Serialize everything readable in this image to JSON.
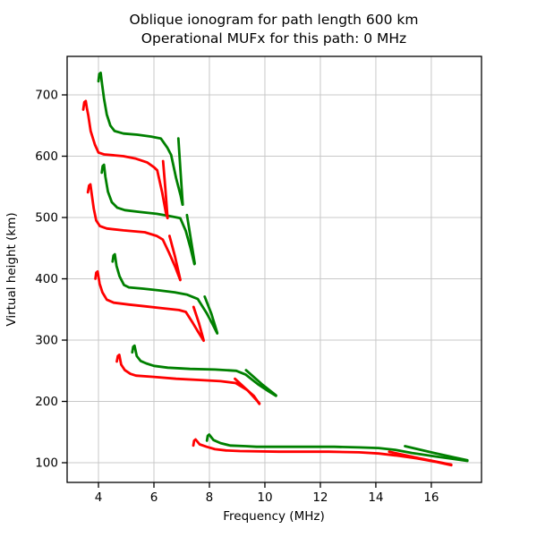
{
  "title": {
    "line1": "Oblique ionogram for path length 600 km",
    "line2": "Operational MUFx for this path: 0 MHz"
  },
  "chart_data": {
    "type": "line",
    "title": "Oblique ionogram for path length 600 km",
    "subtitle": "Operational MUFx for this path: 0 MHz",
    "xlabel": "Frequency (MHz)",
    "ylabel": "Virtual height (km)",
    "xlim": [
      2.87,
      17.81
    ],
    "ylim": [
      67.9,
      762.8
    ],
    "x_ticks": [
      4,
      6,
      8,
      10,
      12,
      14,
      16
    ],
    "y_ticks": [
      100,
      200,
      300,
      400,
      500,
      600,
      700
    ],
    "grid": true,
    "legend": "none",
    "colors": {
      "red": "#ff0000",
      "green": "#008000",
      "grid": "#c8c8c8",
      "spine": "#000000"
    },
    "series": [
      {
        "name": "green-trace-1-low-ray",
        "color": "#008000",
        "points": [
          [
            4.0,
            722
          ],
          [
            4.03,
            734
          ],
          [
            4.08,
            736
          ],
          [
            4.13,
            718
          ],
          [
            4.2,
            694
          ],
          [
            4.3,
            668
          ],
          [
            4.43,
            650
          ],
          [
            4.58,
            641
          ],
          [
            4.9,
            637
          ],
          [
            5.4,
            635
          ],
          [
            5.9,
            632
          ],
          [
            6.25,
            629
          ],
          [
            6.48,
            614
          ],
          [
            6.62,
            602
          ],
          [
            6.8,
            564
          ],
          [
            6.96,
            536
          ],
          [
            7.03,
            521
          ]
        ]
      },
      {
        "name": "green-trace-1-high-ray",
        "color": "#008000",
        "points": [
          [
            6.88,
            629
          ],
          [
            6.96,
            573
          ],
          [
            7.04,
            521
          ]
        ]
      },
      {
        "name": "green-trace-2-low-ray",
        "color": "#008000",
        "points": [
          [
            4.12,
            573
          ],
          [
            4.15,
            584
          ],
          [
            4.2,
            586
          ],
          [
            4.25,
            566
          ],
          [
            4.34,
            542
          ],
          [
            4.48,
            525
          ],
          [
            4.68,
            516
          ],
          [
            4.95,
            512
          ],
          [
            5.5,
            509
          ],
          [
            6.1,
            506
          ],
          [
            6.6,
            502
          ],
          [
            6.95,
            499
          ],
          [
            7.15,
            478
          ],
          [
            7.32,
            450
          ],
          [
            7.46,
            424
          ]
        ]
      },
      {
        "name": "green-trace-2-high-ray",
        "color": "#008000",
        "points": [
          [
            7.19,
            504
          ],
          [
            7.34,
            462
          ],
          [
            7.47,
            425
          ]
        ]
      },
      {
        "name": "green-trace-3-low-ray",
        "color": "#008000",
        "points": [
          [
            4.51,
            428
          ],
          [
            4.54,
            438
          ],
          [
            4.59,
            440
          ],
          [
            4.65,
            421
          ],
          [
            4.76,
            404
          ],
          [
            4.92,
            390
          ],
          [
            5.1,
            386
          ],
          [
            5.6,
            384
          ],
          [
            6.2,
            381
          ],
          [
            6.75,
            378
          ],
          [
            7.2,
            374
          ],
          [
            7.58,
            367
          ],
          [
            7.9,
            344
          ],
          [
            8.1,
            327
          ],
          [
            8.28,
            311
          ]
        ]
      },
      {
        "name": "green-trace-3-high-ray",
        "color": "#008000",
        "points": [
          [
            7.83,
            371
          ],
          [
            8.07,
            343
          ],
          [
            8.28,
            312
          ]
        ]
      },
      {
        "name": "green-trace-4-low-ray",
        "color": "#008000",
        "points": [
          [
            5.22,
            280
          ],
          [
            5.25,
            289
          ],
          [
            5.3,
            291
          ],
          [
            5.38,
            274
          ],
          [
            5.52,
            266
          ],
          [
            5.72,
            262
          ],
          [
            6.0,
            258
          ],
          [
            6.5,
            255
          ],
          [
            7.3,
            253
          ],
          [
            8.2,
            252
          ],
          [
            8.97,
            250
          ],
          [
            9.3,
            244
          ],
          [
            9.75,
            228
          ],
          [
            10.12,
            217
          ],
          [
            10.4,
            209
          ]
        ]
      },
      {
        "name": "green-trace-4-high-ray",
        "color": "#008000",
        "points": [
          [
            9.32,
            251
          ],
          [
            9.92,
            227
          ],
          [
            10.4,
            210
          ]
        ]
      },
      {
        "name": "green-trace-5-low-ray",
        "color": "#008000",
        "points": [
          [
            7.91,
            136
          ],
          [
            7.94,
            144
          ],
          [
            7.99,
            146
          ],
          [
            8.15,
            137
          ],
          [
            8.4,
            132
          ],
          [
            8.75,
            128
          ],
          [
            9.3,
            127
          ],
          [
            9.7,
            126
          ],
          [
            11.0,
            126
          ],
          [
            12.5,
            126
          ],
          [
            13.4,
            125
          ],
          [
            14.1,
            124
          ],
          [
            14.7,
            121
          ],
          [
            15.3,
            116
          ],
          [
            16.2,
            110
          ],
          [
            17.3,
            103
          ]
        ]
      },
      {
        "name": "green-trace-5-high-ray",
        "color": "#008000",
        "points": [
          [
            15.05,
            127
          ],
          [
            16.1,
            116
          ],
          [
            17.3,
            104
          ]
        ]
      },
      {
        "name": "red-trace-1-low-ray",
        "color": "#ff0000",
        "points": [
          [
            3.45,
            676
          ],
          [
            3.49,
            688
          ],
          [
            3.54,
            690
          ],
          [
            3.58,
            679
          ],
          [
            3.63,
            667
          ],
          [
            3.72,
            641
          ],
          [
            3.87,
            619
          ],
          [
            4.0,
            606
          ],
          [
            4.2,
            603
          ],
          [
            4.9,
            600
          ],
          [
            5.35,
            596
          ],
          [
            5.75,
            590
          ],
          [
            6.0,
            582
          ],
          [
            6.12,
            577
          ],
          [
            6.3,
            540
          ],
          [
            6.43,
            508
          ],
          [
            6.49,
            499
          ]
        ]
      },
      {
        "name": "red-trace-1-high-ray",
        "color": "#ff0000",
        "points": [
          [
            6.33,
            592
          ],
          [
            6.41,
            548
          ],
          [
            6.49,
            500
          ]
        ]
      },
      {
        "name": "red-trace-2-low-ray",
        "color": "#ff0000",
        "points": [
          [
            3.62,
            541
          ],
          [
            3.66,
            552
          ],
          [
            3.71,
            554
          ],
          [
            3.76,
            537
          ],
          [
            3.83,
            514
          ],
          [
            3.92,
            495
          ],
          [
            4.05,
            486
          ],
          [
            4.3,
            482
          ],
          [
            4.9,
            479
          ],
          [
            5.67,
            476
          ],
          [
            6.1,
            470
          ],
          [
            6.32,
            464
          ],
          [
            6.55,
            442
          ],
          [
            6.78,
            418
          ],
          [
            6.95,
            398
          ]
        ]
      },
      {
        "name": "red-trace-2-high-ray",
        "color": "#ff0000",
        "points": [
          [
            6.56,
            470
          ],
          [
            6.76,
            436
          ],
          [
            6.95,
            399
          ]
        ]
      },
      {
        "name": "red-trace-3-low-ray",
        "color": "#ff0000",
        "points": [
          [
            3.89,
            400
          ],
          [
            3.92,
            410
          ],
          [
            3.97,
            412
          ],
          [
            4.04,
            392
          ],
          [
            4.14,
            378
          ],
          [
            4.3,
            366
          ],
          [
            4.55,
            361
          ],
          [
            5.1,
            358
          ],
          [
            5.7,
            355
          ],
          [
            6.3,
            352
          ],
          [
            6.9,
            349
          ],
          [
            7.15,
            346
          ],
          [
            7.4,
            328
          ],
          [
            7.6,
            313
          ],
          [
            7.79,
            299
          ]
        ]
      },
      {
        "name": "red-trace-3-high-ray",
        "color": "#ff0000",
        "points": [
          [
            7.43,
            354
          ],
          [
            7.62,
            328
          ],
          [
            7.79,
            300
          ]
        ]
      },
      {
        "name": "red-trace-4-low-ray",
        "color": "#ff0000",
        "points": [
          [
            4.66,
            265
          ],
          [
            4.7,
            274
          ],
          [
            4.75,
            276
          ],
          [
            4.82,
            260
          ],
          [
            4.95,
            251
          ],
          [
            5.15,
            245
          ],
          [
            5.35,
            242
          ],
          [
            6.0,
            240
          ],
          [
            6.8,
            237
          ],
          [
            7.6,
            235
          ],
          [
            8.4,
            233
          ],
          [
            8.95,
            230
          ],
          [
            9.35,
            219
          ],
          [
            9.6,
            209
          ],
          [
            9.8,
            196
          ]
        ]
      },
      {
        "name": "red-trace-4-high-ray",
        "color": "#ff0000",
        "points": [
          [
            8.92,
            237
          ],
          [
            9.4,
            217
          ],
          [
            9.8,
            197
          ]
        ]
      },
      {
        "name": "red-trace-5-low-ray",
        "color": "#ff0000",
        "points": [
          [
            7.42,
            128
          ],
          [
            7.45,
            136
          ],
          [
            7.5,
            138
          ],
          [
            7.65,
            130
          ],
          [
            7.9,
            126
          ],
          [
            8.2,
            122
          ],
          [
            8.6,
            120
          ],
          [
            9.1,
            119
          ],
          [
            10.5,
            118
          ],
          [
            12.3,
            118
          ],
          [
            13.4,
            117
          ],
          [
            14.1,
            115
          ],
          [
            14.7,
            112
          ],
          [
            15.5,
            107
          ],
          [
            16.2,
            101
          ],
          [
            16.72,
            96
          ]
        ]
      },
      {
        "name": "red-trace-5-high-ray",
        "color": "#ff0000",
        "points": [
          [
            14.48,
            118
          ],
          [
            15.6,
            107
          ],
          [
            16.72,
            97
          ]
        ]
      }
    ]
  }
}
